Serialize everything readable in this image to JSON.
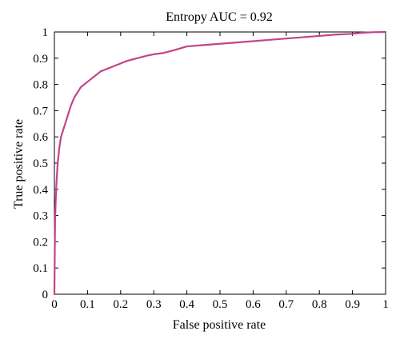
{
  "chart_data": {
    "type": "line",
    "title": "Entropy AUC = 0.92",
    "xlabel": "False positive rate",
    "ylabel": "True positive rate",
    "xlim": [
      0,
      1
    ],
    "ylim": [
      0,
      1
    ],
    "x_ticks": [
      "0",
      "0.1",
      "0.2",
      "0.3",
      "0.4",
      "0.5",
      "0.6",
      "0.7",
      "0.8",
      "0.9",
      "1"
    ],
    "y_ticks": [
      "0",
      "0.1",
      "0.2",
      "0.3",
      "0.4",
      "0.5",
      "0.6",
      "0.7",
      "0.8",
      "0.9",
      "1"
    ],
    "grid": false,
    "legend": "none",
    "colors": {
      "series": "#c2448a",
      "axes": "#000000"
    },
    "series": [
      {
        "x": [
          0,
          0.002,
          0.004,
          0.006,
          0.008,
          0.01,
          0.015,
          0.02,
          0.03,
          0.04,
          0.05,
          0.06,
          0.07,
          0.08,
          0.09,
          0.1,
          0.12,
          0.14,
          0.16,
          0.18,
          0.2,
          0.22,
          0.25,
          0.28,
          0.3,
          0.33,
          0.36,
          0.4,
          0.45,
          0.5,
          0.55,
          0.6,
          0.65,
          0.7,
          0.75,
          0.8,
          0.85,
          0.9,
          0.93,
          0.96,
          1.0
        ],
        "y": [
          0,
          0.28,
          0.36,
          0.42,
          0.46,
          0.5,
          0.56,
          0.6,
          0.64,
          0.68,
          0.72,
          0.75,
          0.77,
          0.79,
          0.8,
          0.81,
          0.83,
          0.85,
          0.86,
          0.87,
          0.88,
          0.89,
          0.9,
          0.91,
          0.915,
          0.92,
          0.93,
          0.945,
          0.95,
          0.955,
          0.96,
          0.965,
          0.97,
          0.975,
          0.98,
          0.985,
          0.99,
          0.993,
          0.997,
          0.999,
          1.0
        ]
      }
    ]
  }
}
